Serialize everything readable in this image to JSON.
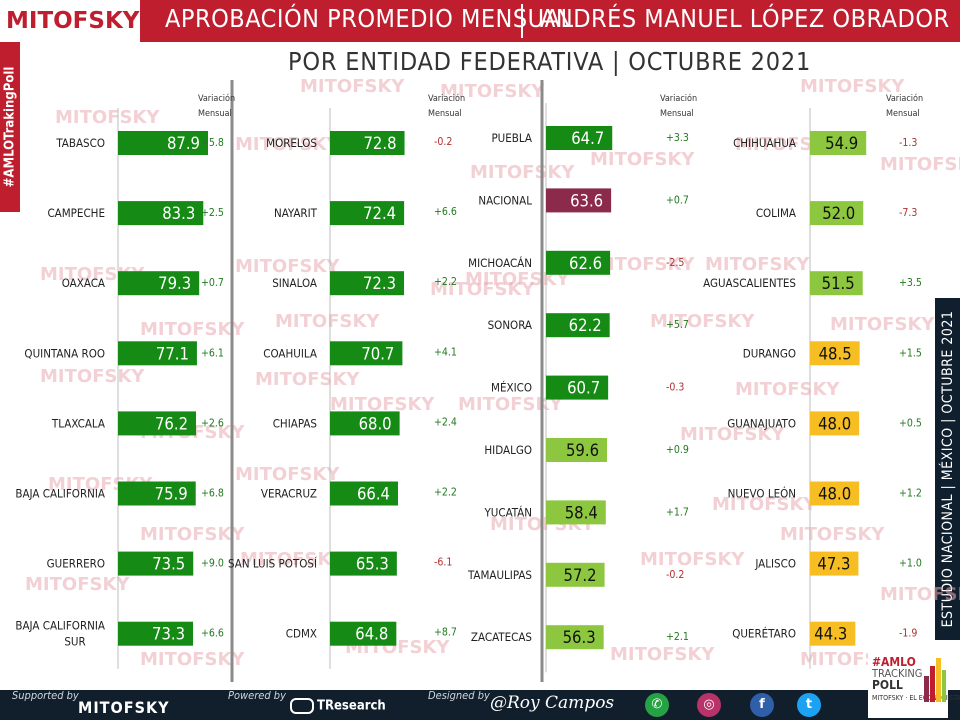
{
  "header": {
    "logo": "MITOFSKY",
    "title": "APROBACIÓN PROMEDIO MENSUAL",
    "person": "ANDRÉS MANUEL LÓPEZ OBRADOR",
    "subtitle": "POR ENTIDAD FEDERATIVA  |  OCTUBRE 2021"
  },
  "side_tag_left": "#AMLOTrakingPoll",
  "side_tag_right": "ESTUDIO NACIONAL  |  MÉXICO  |  OCTUBRE 2021",
  "watermark": "MITOFSKY",
  "colors": {
    "brand_red": "#bf1e2e",
    "navy": "#111f2c",
    "dark_green": "#158a15",
    "light_green": "#8dc63f",
    "yellow": "#f6be23",
    "maroon": "#8b2a4b",
    "positive_text": "#1f7a1f",
    "negative_text": "#b03030"
  },
  "chart_data": {
    "type": "bar",
    "title": "APROBACIÓN PROMEDIO MENSUAL | ANDRÉS MANUEL LÓPEZ OBRADOR",
    "subtitle": "POR ENTIDAD FEDERATIVA | OCTUBRE 2021",
    "variation_header": [
      "Variación",
      "Mensual"
    ],
    "groups": [
      {
        "rows": [
          {
            "label": [
              "TABASCO"
            ],
            "value": 87.9,
            "value_text": "87.9",
            "change": "+5.8",
            "color": "dark_green"
          },
          {
            "label": [
              "CAMPECHE"
            ],
            "value": 83.3,
            "value_text": "83.3",
            "change": "+2.5",
            "color": "dark_green"
          },
          {
            "label": [
              "OAXACA"
            ],
            "value": 79.3,
            "value_text": "79.3",
            "change": "+0.7",
            "color": "dark_green"
          },
          {
            "label": [
              "QUINTANA ROO"
            ],
            "value": 77.1,
            "value_text": "77.1",
            "change": "+6.1",
            "color": "dark_green"
          },
          {
            "label": [
              "TLAXCALA"
            ],
            "value": 76.2,
            "value_text": "76.2",
            "change": "+2.6",
            "color": "dark_green"
          },
          {
            "label": [
              "BAJA CALIFORNIA"
            ],
            "value": 75.9,
            "value_text": "75.9",
            "change": "+6.8",
            "color": "dark_green"
          },
          {
            "label": [
              "GUERRERO"
            ],
            "value": 73.5,
            "value_text": "73.5",
            "change": "+9.0",
            "color": "dark_green"
          },
          {
            "label": [
              "BAJA CALIFORNIA",
              "SUR"
            ],
            "value": 73.3,
            "value_text": "73.3",
            "change": "+6.6",
            "color": "dark_green"
          }
        ]
      },
      {
        "rows": [
          {
            "label": [
              "MORELOS"
            ],
            "value": 72.8,
            "value_text": "72.8",
            "change": "-0.2",
            "color": "dark_green"
          },
          {
            "label": [
              "NAYARIT"
            ],
            "value": 72.4,
            "value_text": "72.4",
            "change": "+6.6",
            "color": "dark_green"
          },
          {
            "label": [
              "SINALOA"
            ],
            "value": 72.3,
            "value_text": "72.3",
            "change": "+2.2",
            "color": "dark_green"
          },
          {
            "label": [
              "COAHUILA"
            ],
            "value": 70.7,
            "value_text": "70.7",
            "change": "+4.1",
            "color": "dark_green"
          },
          {
            "label": [
              "CHIAPAS"
            ],
            "value": 68.0,
            "value_text": "68.0",
            "change": "+2.4",
            "color": "dark_green"
          },
          {
            "label": [
              "VERACRUZ"
            ],
            "value": 66.4,
            "value_text": "66.4",
            "change": "+2.2",
            "color": "dark_green"
          },
          {
            "label": [
              "SAN LUIS POTOSÍ"
            ],
            "value": 65.3,
            "value_text": "65.3",
            "change": "-6.1",
            "color": "dark_green"
          },
          {
            "label": [
              "CDMX"
            ],
            "value": 64.8,
            "value_text": "64.8",
            "change": "+8.7",
            "color": "dark_green"
          }
        ]
      },
      {
        "rows": [
          {
            "label": [
              "PUEBLA"
            ],
            "value": 64.7,
            "value_text": "64.7",
            "change": "+3.3",
            "color": "dark_green"
          },
          {
            "label": [
              "NACIONAL"
            ],
            "value": 63.6,
            "value_text": "63.6",
            "change": "+0.7",
            "color": "maroon"
          },
          {
            "label": [
              "MICHOACÁN"
            ],
            "value": 62.6,
            "value_text": "62.6",
            "change": "-2.5",
            "color": "dark_green"
          },
          {
            "label": [
              "SONORA"
            ],
            "value": 62.2,
            "value_text": "62.2",
            "change": "+5.7",
            "color": "dark_green"
          },
          {
            "label": [
              "MÉXICO"
            ],
            "value": 60.7,
            "value_text": "60.7",
            "change": "-0.3",
            "color": "dark_green"
          },
          {
            "label": [
              "HIDALGO"
            ],
            "value": 59.6,
            "value_text": "59.6",
            "change": "+0.9",
            "color": "light_green"
          },
          {
            "label": [
              "YUCATÁN"
            ],
            "value": 58.4,
            "value_text": "58.4",
            "change": "+1.7",
            "color": "light_green"
          },
          {
            "label": [
              "TAMAULIPAS"
            ],
            "value": 57.2,
            "value_text": "57.2",
            "change": "-0.2",
            "color": "light_green"
          },
          {
            "label": [
              "ZACATECAS"
            ],
            "value": 56.3,
            "value_text": "56.3",
            "change": "+2.1",
            "color": "light_green"
          }
        ]
      },
      {
        "rows": [
          {
            "label": [
              "CHIHUAHUA"
            ],
            "value": 54.9,
            "value_text": "54.9",
            "change": "-1.3",
            "color": "light_green"
          },
          {
            "label": [
              "COLIMA"
            ],
            "value": 52.0,
            "value_text": "52.0",
            "change": "-7.3",
            "color": "light_green"
          },
          {
            "label": [
              "AGUASCALIENTES"
            ],
            "value": 51.5,
            "value_text": "51.5",
            "change": "+3.5",
            "color": "light_green"
          },
          {
            "label": [
              "DURANGO"
            ],
            "value": 48.5,
            "value_text": "48.5",
            "change": "+1.5",
            "color": "yellow"
          },
          {
            "label": [
              "GUANAJUATO"
            ],
            "value": 48.0,
            "value_text": "48.0",
            "change": "+0.5",
            "color": "yellow"
          },
          {
            "label": [
              "NUEVO LEÓN"
            ],
            "value": 48.0,
            "value_text": "48.0",
            "change": "+1.2",
            "color": "yellow"
          },
          {
            "label": [
              "JALISCO"
            ],
            "value": 47.3,
            "value_text": "47.3",
            "change": "+1.0",
            "color": "yellow"
          },
          {
            "label": [
              "QUERÉTARO"
            ],
            "value": 44.3,
            "value_text": "44.3",
            "change": "-1.9",
            "color": "yellow"
          }
        ]
      }
    ]
  },
  "footer": {
    "supported_by": "Supported by",
    "supported_brand": "MITOFSKY",
    "powered_by": "Powered by",
    "powered_brand": "TResearch",
    "designed_by": "Designed by",
    "designer": "@Roy Campos",
    "social_icons": [
      "whatsapp-icon",
      "instagram-icon",
      "facebook-icon",
      "twitter-icon"
    ]
  },
  "badge": {
    "hashtag": "#AMLO",
    "line2": "TRACKING",
    "line3": "POLL",
    "sources": "MITOFSKY · EL ECONOMISTA"
  }
}
